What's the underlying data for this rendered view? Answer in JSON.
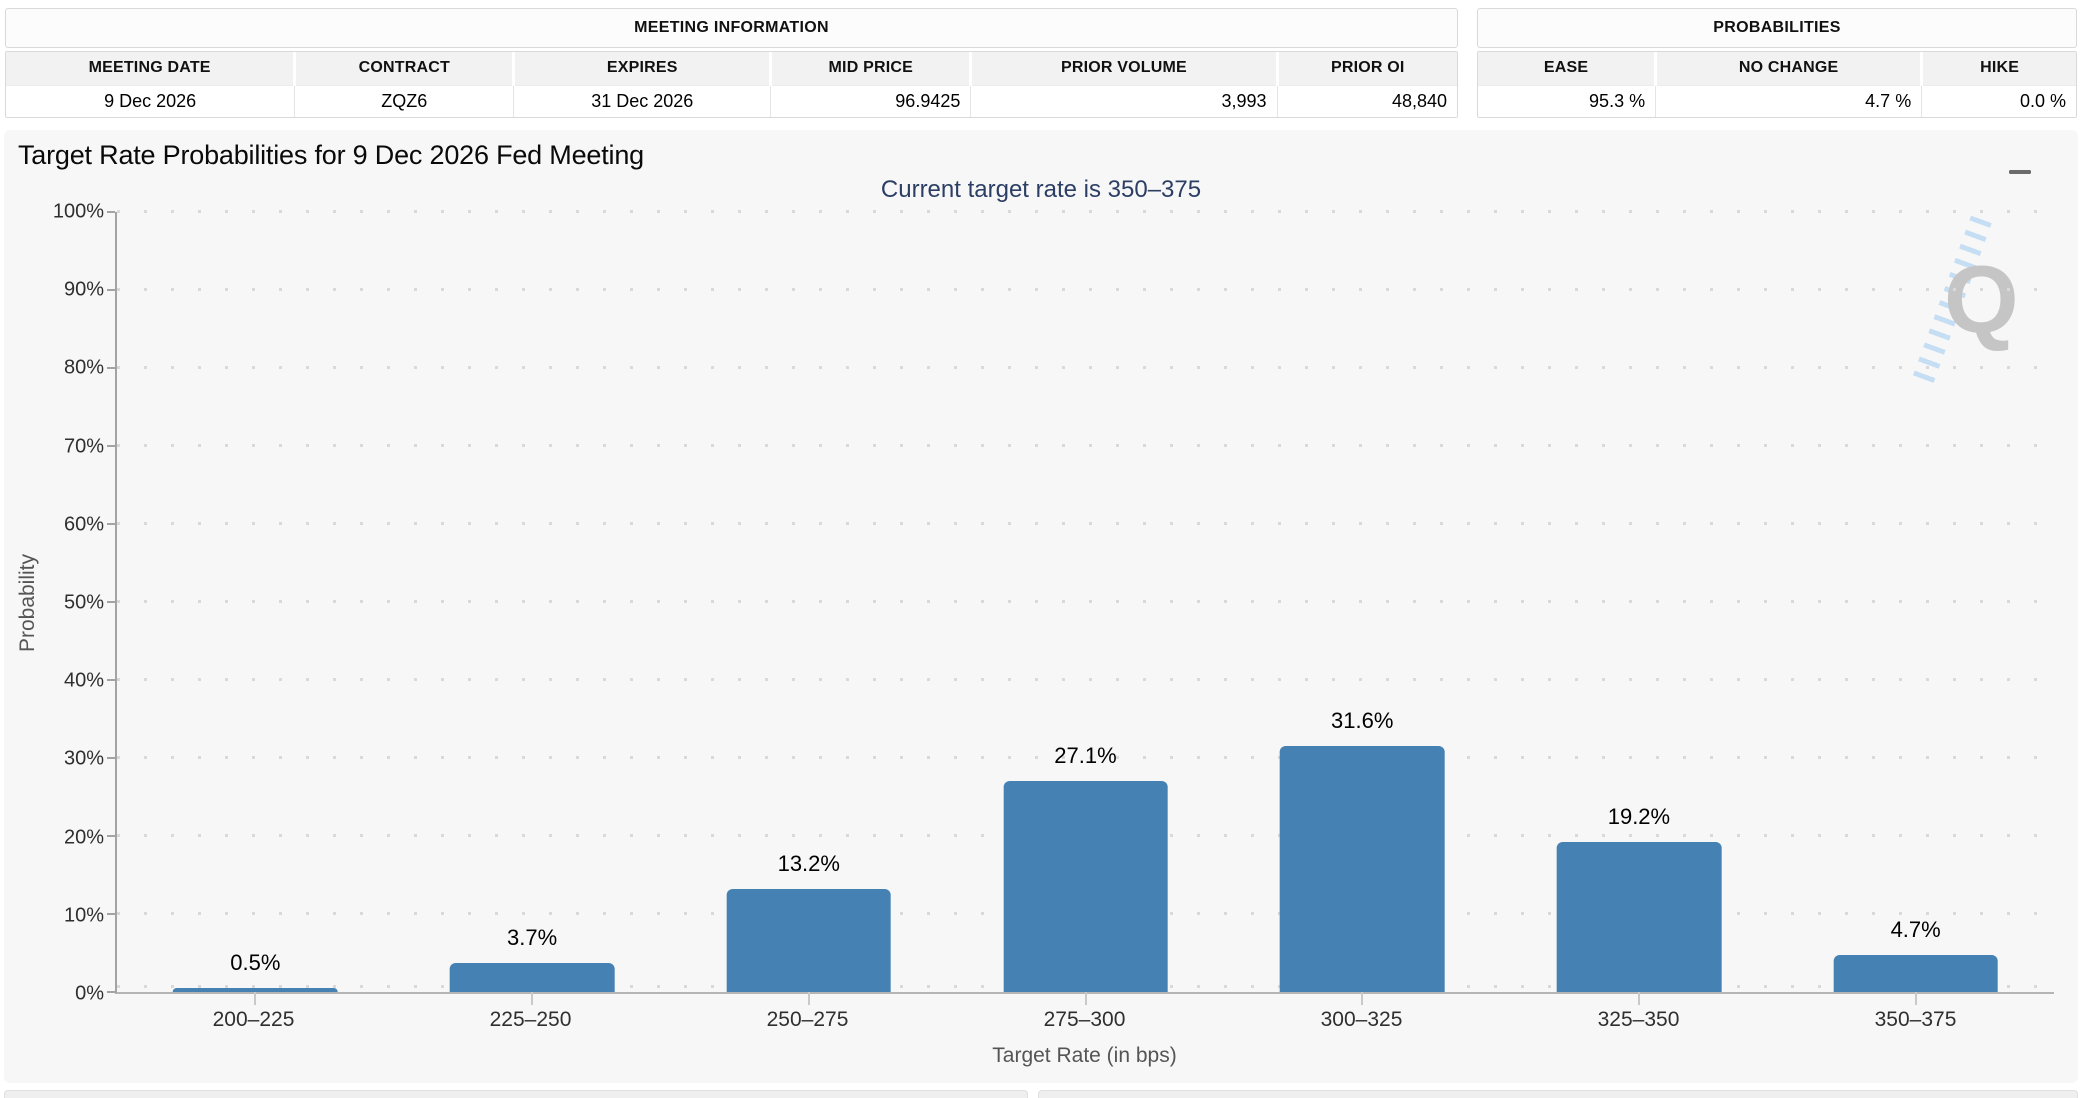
{
  "meeting_information": {
    "title": "MEETING INFORMATION",
    "columns": [
      "MEETING DATE",
      "CONTRACT",
      "EXPIRES",
      "MID PRICE",
      "PRIOR VOLUME",
      "PRIOR OI"
    ],
    "values": [
      "9 Dec 2026",
      "ZQZ6",
      "31 Dec 2026",
      "96.9425",
      "3,993",
      "48,840"
    ]
  },
  "probabilities": {
    "title": "PROBABILITIES",
    "columns": [
      "EASE",
      "NO CHANGE",
      "HIKE"
    ],
    "values": [
      "95.3 %",
      "4.7 %",
      "0.0 %"
    ]
  },
  "chart": {
    "title": "Target Rate Probabilities for 9 Dec 2026 Fed Meeting",
    "subtitle": "Current target rate is 350–375",
    "watermark_letter": "Q"
  },
  "icons": {
    "chart_menu": "hamburger-icon"
  },
  "chart_data": {
    "type": "bar",
    "title": "Target Rate Probabilities for 9 Dec 2026 Fed Meeting",
    "subtitle": "Current target rate is 350–375",
    "categories": [
      "200–225",
      "225–250",
      "250–275",
      "275–300",
      "300–325",
      "325–350",
      "350–375"
    ],
    "values": [
      0.5,
      3.7,
      13.2,
      27.1,
      31.6,
      19.2,
      4.7
    ],
    "value_labels": [
      "0.5%",
      "3.7%",
      "13.2%",
      "27.1%",
      "31.6%",
      "19.2%",
      "4.7%"
    ],
    "xlabel": "Target Rate (in bps)",
    "ylabel": "Probability",
    "ylim": [
      0,
      100
    ],
    "ytick_step": 10,
    "ytick_suffix": "%",
    "grid": "dotted-horizontal",
    "legend": "none",
    "bar_color": "#4681b4"
  },
  "colors": {
    "bar": "#4681b4",
    "subtitle_text": "#2c3e64",
    "panel_bg": "#f7f7f7",
    "watermark_gray": "#c5c5c5",
    "watermark_blue": "#bcd9f2"
  }
}
